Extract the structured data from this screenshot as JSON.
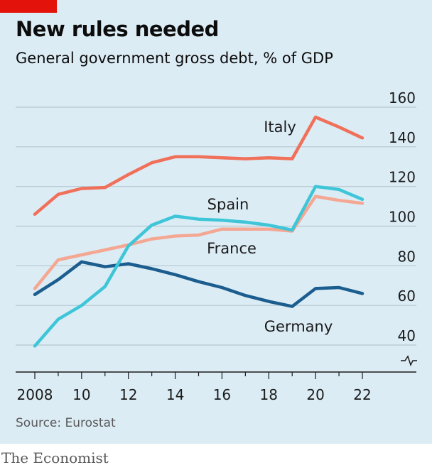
{
  "header": {
    "title": "New rules needed",
    "subtitle": "General government gross debt, % of GDP"
  },
  "footer": {
    "source": "Source: Eurostat",
    "brand": "The Economist"
  },
  "colors": {
    "background": "#dcecf5",
    "accent_tag": "#e3120b",
    "Italy": "#f0705a",
    "Spain": "#3ec6d8",
    "France": "#f4a792",
    "Germany": "#1b5d8e",
    "grid": "#b7c7d1"
  },
  "chart_data": {
    "type": "line",
    "title": "New rules needed",
    "subtitle": "General government gross debt, % of GDP",
    "x": [
      2008,
      2009,
      2010,
      2011,
      2012,
      2013,
      2014,
      2015,
      2016,
      2017,
      2018,
      2019,
      2020,
      2021,
      2022
    ],
    "x_tick_labels": [
      "2008",
      "10",
      "12",
      "14",
      "16",
      "18",
      "20",
      "22"
    ],
    "x_tick_values": [
      2008,
      2010,
      2012,
      2014,
      2016,
      2018,
      2020,
      2022
    ],
    "y_ticks": [
      40,
      60,
      80,
      100,
      120,
      140,
      160
    ],
    "ylim": [
      27,
      160
    ],
    "y_axis_break": true,
    "y_axis_position": "right",
    "grid": true,
    "series": [
      {
        "name": "Italy",
        "values": [
          106,
          116,
          119,
          119.5,
          126,
          132,
          135,
          135,
          134.5,
          134,
          134.5,
          134,
          155,
          150,
          144.5
        ]
      },
      {
        "name": "Spain",
        "values": [
          39.5,
          53,
          60,
          69.5,
          90,
          100.5,
          105,
          103.5,
          103,
          102,
          100.5,
          98,
          120,
          118.5,
          113.5
        ]
      },
      {
        "name": "France",
        "values": [
          68.5,
          83,
          85.5,
          88,
          90.5,
          93.5,
          95,
          95.5,
          98.5,
          98.5,
          98.5,
          97.5,
          115,
          113,
          111.5
        ]
      },
      {
        "name": "Germany",
        "values": [
          65.5,
          73,
          82,
          79.5,
          81,
          78.5,
          75.5,
          72,
          69,
          65,
          62,
          59.5,
          68.5,
          69,
          66
        ]
      }
    ]
  }
}
